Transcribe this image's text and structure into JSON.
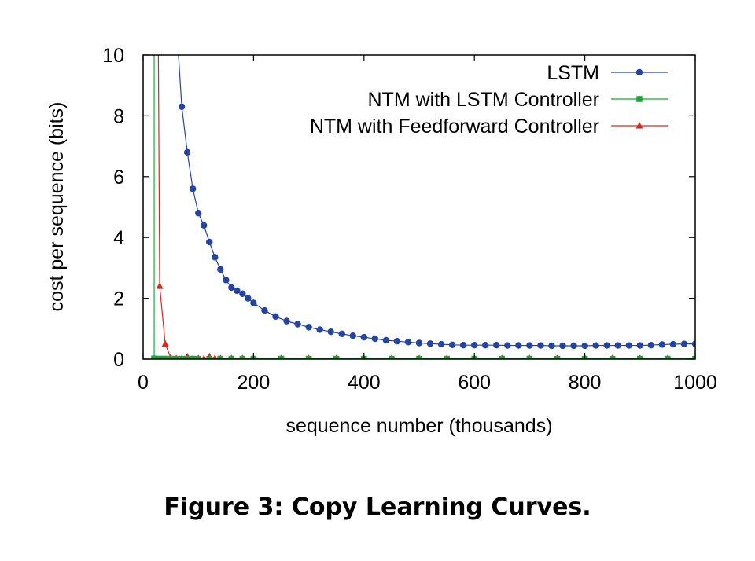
{
  "caption": "Figure 3: Copy Learning Curves.",
  "chart_data": {
    "type": "line",
    "xlabel": "sequence number (thousands)",
    "ylabel": "cost per sequence (bits)",
    "xlim": [
      0,
      1000
    ],
    "ylim": [
      0,
      10
    ],
    "x_ticks": [
      0,
      200,
      400,
      600,
      800,
      1000
    ],
    "y_ticks": [
      0,
      2,
      4,
      6,
      8,
      10
    ],
    "legend_position": "top-right",
    "grid": false,
    "series": [
      {
        "name": "LSTM",
        "color": "#2544a0",
        "marker": "circle",
        "x": [
          50,
          70,
          80,
          90,
          100,
          110,
          120,
          130,
          140,
          150,
          160,
          170,
          180,
          190,
          200,
          220,
          240,
          260,
          280,
          300,
          320,
          340,
          360,
          380,
          400,
          420,
          440,
          460,
          480,
          500,
          520,
          540,
          560,
          580,
          600,
          620,
          640,
          660,
          680,
          700,
          720,
          740,
          760,
          780,
          800,
          820,
          840,
          860,
          880,
          900,
          920,
          940,
          960,
          980,
          1000
        ],
        "y": [
          14.0,
          8.3,
          6.8,
          5.6,
          4.8,
          4.4,
          3.85,
          3.35,
          2.95,
          2.6,
          2.35,
          2.25,
          2.15,
          2.0,
          1.85,
          1.6,
          1.4,
          1.25,
          1.15,
          1.05,
          0.97,
          0.9,
          0.83,
          0.77,
          0.72,
          0.67,
          0.62,
          0.59,
          0.56,
          0.53,
          0.51,
          0.49,
          0.47,
          0.46,
          0.46,
          0.46,
          0.46,
          0.45,
          0.45,
          0.45,
          0.45,
          0.44,
          0.44,
          0.44,
          0.44,
          0.45,
          0.45,
          0.45,
          0.45,
          0.45,
          0.46,
          0.48,
          0.49,
          0.5,
          0.5
        ]
      },
      {
        "name": "NTM with LSTM Controller",
        "color": "#18a83a",
        "marker": "square",
        "x": [
          20,
          20,
          25,
          30,
          35,
          40,
          45,
          50,
          60,
          70,
          80,
          90,
          100,
          120,
          140,
          160,
          180,
          200,
          250,
          300,
          350,
          400,
          450,
          500,
          550,
          600,
          650,
          700,
          750,
          800,
          850,
          900,
          950,
          1000
        ],
        "y": [
          12.0,
          0.02,
          0.01,
          0.01,
          0.01,
          0.01,
          0.01,
          0.01,
          0.01,
          0.01,
          0.01,
          0.01,
          0.01,
          0.01,
          0.01,
          0.01,
          0.01,
          0.01,
          0.01,
          0.01,
          0.01,
          0.01,
          0.01,
          0.01,
          0.01,
          0.01,
          0.01,
          0.01,
          0.01,
          0.01,
          0.01,
          0.01,
          0.01,
          0.01
        ]
      },
      {
        "name": "NTM with Feedforward Controller",
        "color": "#d9271e",
        "marker": "triangle",
        "x": [
          27,
          30,
          40,
          50,
          60,
          70,
          80,
          90,
          100,
          110,
          120,
          130,
          140,
          160,
          180,
          200,
          250,
          300,
          350,
          400,
          450,
          500,
          550,
          600,
          650,
          700,
          750,
          800,
          850,
          900,
          950,
          1000
        ],
        "y": [
          12.0,
          2.4,
          0.5,
          0.05,
          0.02,
          0.02,
          0.08,
          0.02,
          0.02,
          0.02,
          0.08,
          0.03,
          0.02,
          0.02,
          0.02,
          0.02,
          0.02,
          0.02,
          0.02,
          0.02,
          0.02,
          0.02,
          0.02,
          0.02,
          0.02,
          0.02,
          0.02,
          0.02,
          0.02,
          0.02,
          0.02,
          0.02
        ]
      }
    ]
  }
}
